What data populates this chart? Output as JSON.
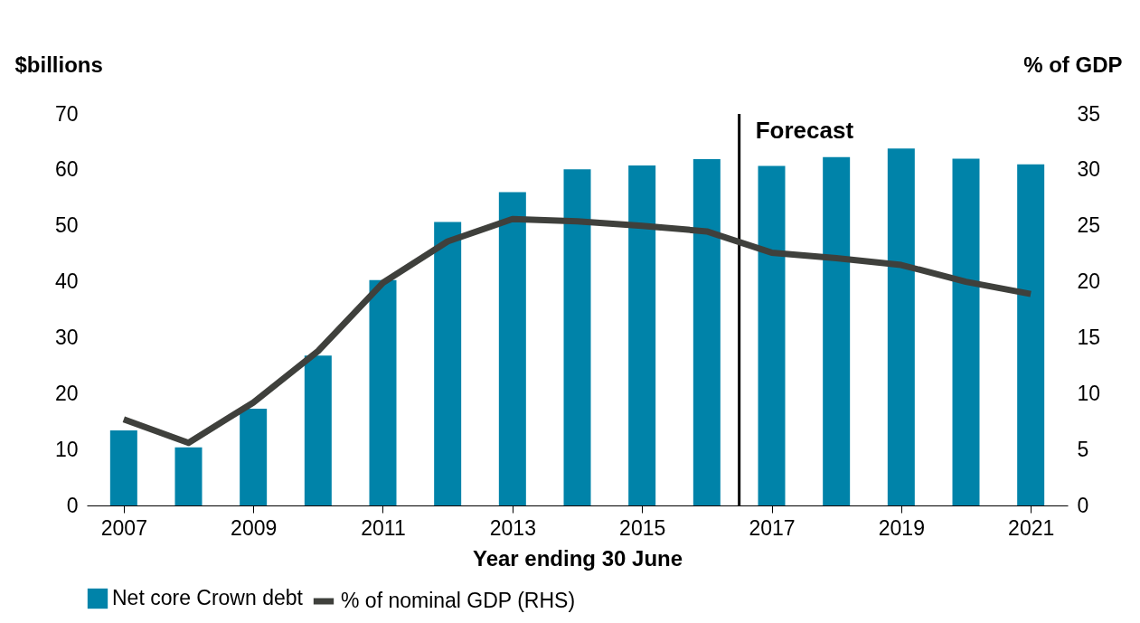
{
  "chart_data": {
    "type": "bar",
    "xlabel": "Year ending 30 June",
    "ylabel": "$billions",
    "y2label": "% of GDP",
    "x": [
      2007,
      2008,
      2009,
      2010,
      2011,
      2012,
      2013,
      2014,
      2015,
      2016,
      2017,
      2018,
      2019,
      2020,
      2021
    ],
    "xlim": [
      2006.5,
      2021.5
    ],
    "xticks": [
      2007,
      2009,
      2011,
      2013,
      2015,
      2017,
      2019,
      2021
    ],
    "ylim": [
      0,
      70
    ],
    "yticks": [
      0,
      10,
      20,
      30,
      40,
      50,
      60,
      70
    ],
    "y2lim": [
      0,
      35
    ],
    "y2ticks": [
      0,
      5,
      10,
      15,
      20,
      25,
      30,
      35
    ],
    "series": [
      {
        "name": "Net core Crown debt",
        "color": "#0083a9",
        "values": [
          13.4,
          10.4,
          17.3,
          26.8,
          40.3,
          50.7,
          56.0,
          60.1,
          60.8,
          61.9,
          60.7,
          62.3,
          63.8,
          62.0,
          61.0
        ]
      },
      {
        "name": "% of nominal GDP (RHS)",
        "type": "line",
        "axis": "y2",
        "color": "#3f403c",
        "values": [
          7.7,
          5.6,
          9.2,
          13.8,
          19.9,
          23.6,
          25.6,
          25.4,
          25.0,
          24.5,
          22.6,
          22.1,
          21.5,
          20.0,
          18.9
        ]
      }
    ],
    "ref_lines": [
      {
        "axis": "x",
        "value": 2016.5,
        "label": "Forecast",
        "color": "#000000"
      }
    ],
    "grid": false,
    "legend": "bottom"
  }
}
